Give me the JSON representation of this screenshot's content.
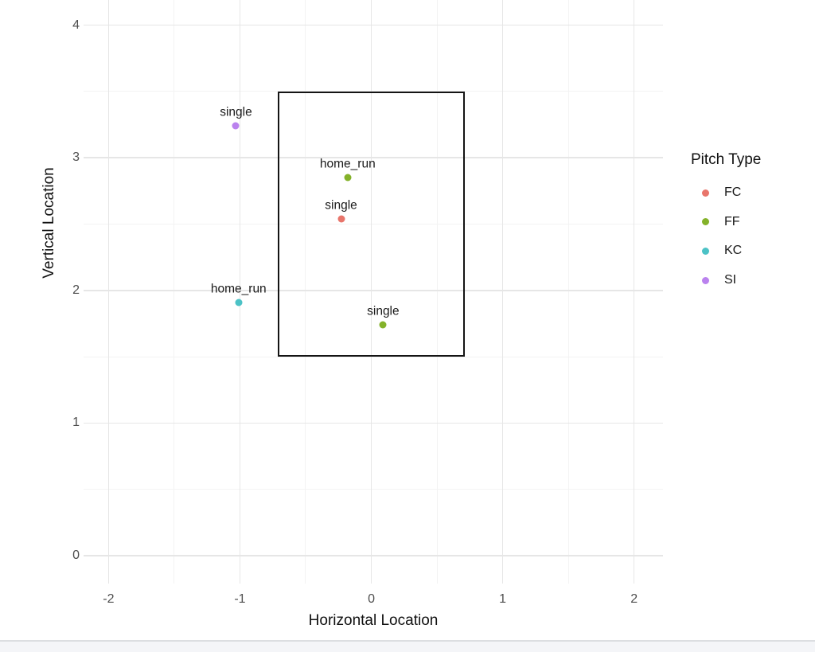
{
  "chart_data": {
    "type": "scatter",
    "title": "",
    "xlabel": "Horizontal Location",
    "ylabel": "Vertical Location",
    "xlim": [
      -2.19,
      2.22
    ],
    "ylim": [
      -0.21,
      4.19
    ],
    "x_major_ticks": [
      -2,
      -1,
      0,
      1,
      2
    ],
    "x_minor_ticks": [
      -1.5,
      -0.5,
      0.5,
      1.5
    ],
    "y_major_ticks": [
      0,
      1,
      2,
      3,
      4
    ],
    "y_minor_ticks": [
      0.5,
      1.5,
      2.5,
      3.5
    ],
    "grid": "on",
    "panel_background": "#ffffff",
    "strike_zone": {
      "x_min": -0.71,
      "x_max": 0.71,
      "y_min": 1.5,
      "y_max": 3.5,
      "color": "#141414"
    },
    "pitch_colors": {
      "FC": "#E8756B",
      "FF": "#84B22A",
      "KC": "#4CC2C6",
      "SI": "#BA82EE"
    },
    "points": [
      {
        "x": -1.03,
        "y": 3.24,
        "label": "single",
        "pitch_type": "SI"
      },
      {
        "x": -0.18,
        "y": 2.85,
        "label": "home_run",
        "pitch_type": "FF"
      },
      {
        "x": -0.23,
        "y": 2.54,
        "label": "single",
        "pitch_type": "FC"
      },
      {
        "x": -1.01,
        "y": 1.91,
        "label": "home_run",
        "pitch_type": "KC"
      },
      {
        "x": 0.09,
        "y": 1.74,
        "label": "single",
        "pitch_type": "FF"
      }
    ],
    "legend": {
      "title": "Pitch Type",
      "position": "right",
      "entries": [
        {
          "label": "FC"
        },
        {
          "label": "FF"
        },
        {
          "label": "KC"
        },
        {
          "label": "SI"
        }
      ]
    }
  }
}
